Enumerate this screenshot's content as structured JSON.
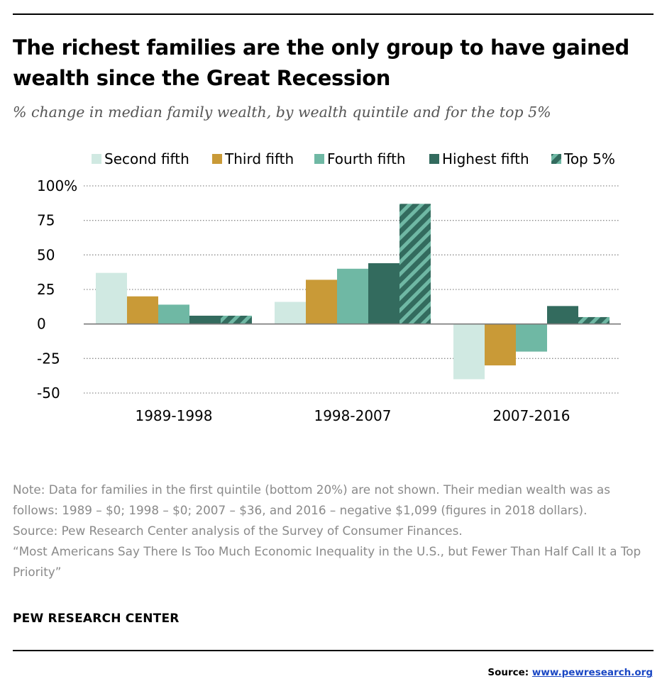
{
  "title": "The richest families are the only group to have gained wealth since the Great Recession",
  "subtitle": "% change in median family wealth, by wealth quintile and for the top 5%",
  "notes": [
    "Note: Data for families in the first quintile (bottom 20%) are not shown. Their median wealth was as follows: 1989 – $0; 1998 – $0; 2007 – $36, and 2016 – negative $1,099 (figures in 2018 dollars).",
    "Source: Pew Research Center analysis of the Survey of Consumer Finances.",
    "“Most Americans Say There Is Too Much Economic Inequality in the U.S., but Fewer Than Half Call It a Top Priority”"
  ],
  "brand": "PEW RESEARCH CENTER",
  "footer": {
    "source_label": "Source:",
    "source_link": "www.pewresearch.org"
  },
  "chart_data": {
    "type": "bar",
    "categories": [
      "1989-1998",
      "1998-2007",
      "2007-2016"
    ],
    "series": [
      {
        "name": "Second fifth",
        "color": "#d0e9e2",
        "pattern": "solid",
        "values": [
          37,
          16,
          -40
        ]
      },
      {
        "name": "Third fifth",
        "color": "#c99a37",
        "pattern": "solid",
        "values": [
          20,
          32,
          -30
        ]
      },
      {
        "name": "Fourth fifth",
        "color": "#6fb8a4",
        "pattern": "solid",
        "values": [
          14,
          40,
          -20
        ]
      },
      {
        "name": "Highest fifth",
        "color": "#336b5e",
        "pattern": "solid",
        "values": [
          6,
          44,
          13
        ]
      },
      {
        "name": "Top 5%",
        "color": "#336b5e",
        "pattern": "striped",
        "stripe_color": "#6fb8a4",
        "values": [
          6,
          87,
          5
        ]
      }
    ],
    "y_ticks": [
      {
        "value": 100,
        "label": "100%"
      },
      {
        "value": 75,
        "label": "75"
      },
      {
        "value": 50,
        "label": "50"
      },
      {
        "value": 25,
        "label": "25"
      },
      {
        "value": 0,
        "label": "0"
      },
      {
        "value": -25,
        "label": "-25"
      },
      {
        "value": -50,
        "label": "-50"
      }
    ],
    "ylim": [
      -50,
      100
    ],
    "grid": "dotted horizontal",
    "legend_position": "top"
  }
}
